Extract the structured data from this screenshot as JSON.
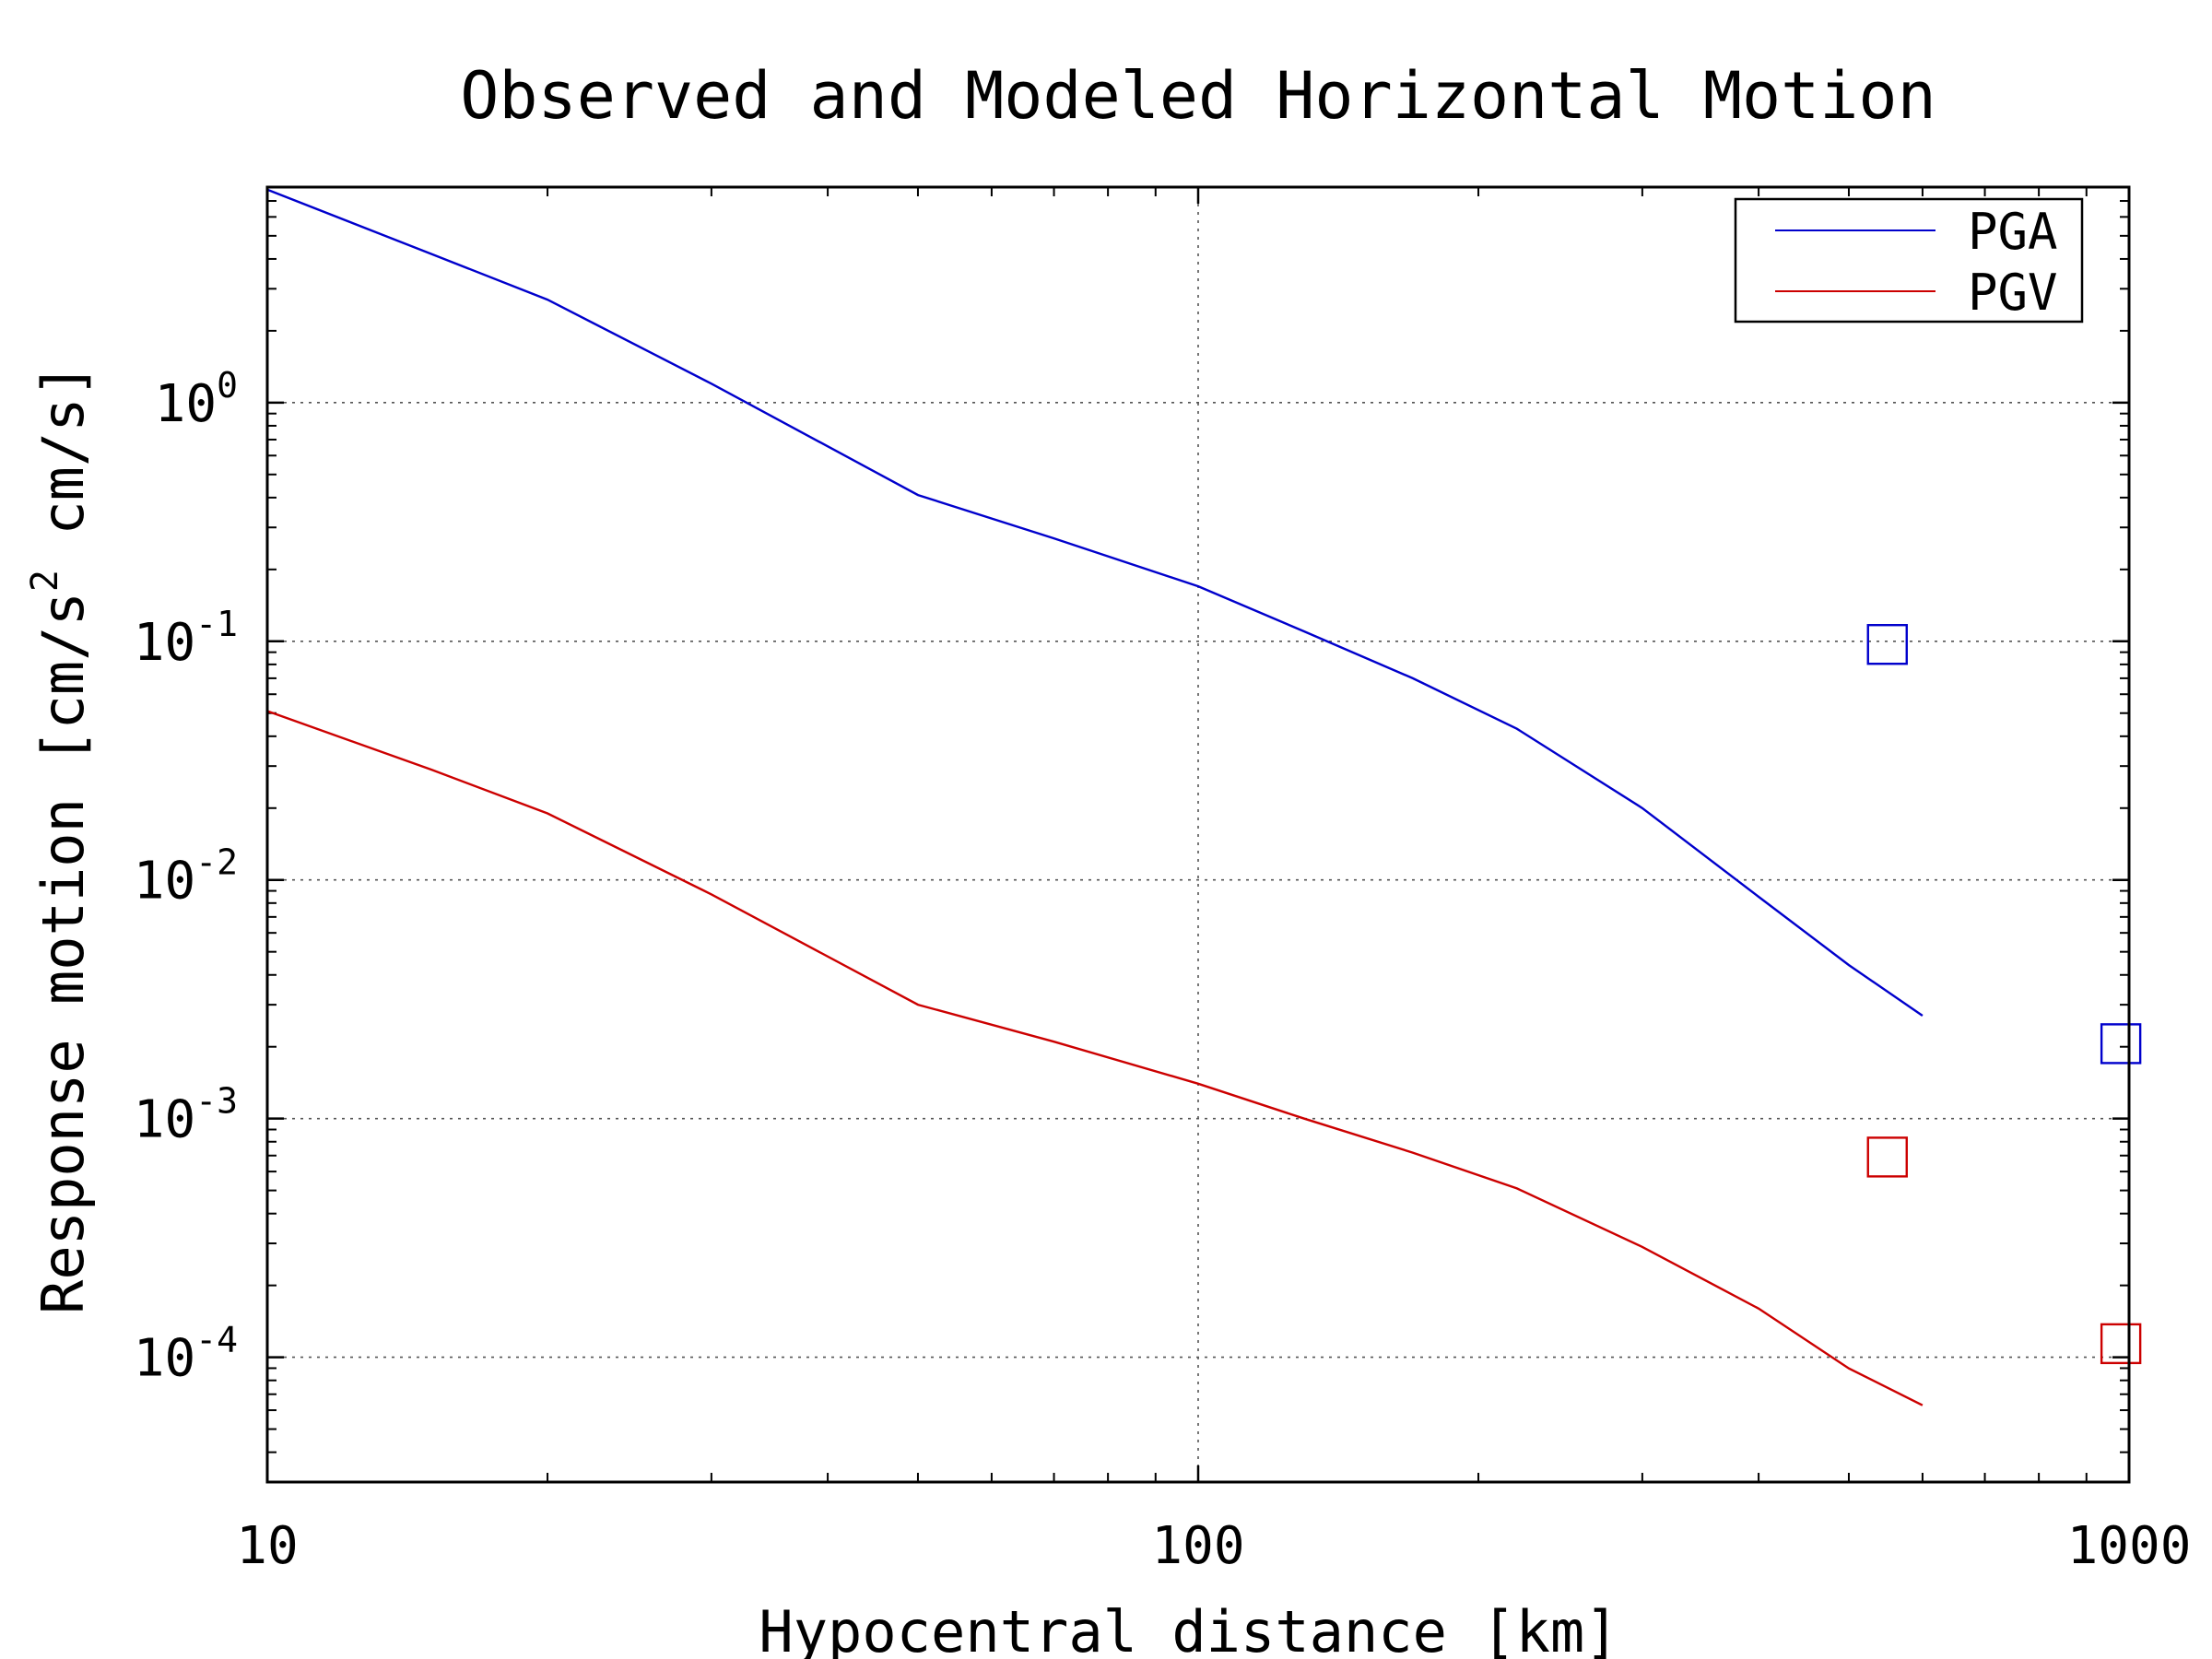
{
  "chart_data": {
    "type": "line",
    "title": "Observed and Modeled Horizontal Motion",
    "xlabel": "Hypocentral distance [km]",
    "ylabel_parts": {
      "prefix": "Response motion [cm/s",
      "sup": "2",
      "suffix": "  cm/s]"
    },
    "xscale": "log",
    "yscale": "log",
    "xlim": [
      10,
      1000
    ],
    "ylim": [
      3e-05,
      8
    ],
    "x_ticks": [
      {
        "value": 10,
        "label": "10"
      },
      {
        "value": 100,
        "label": "100"
      },
      {
        "value": 1000,
        "label": "1000"
      }
    ],
    "y_ticks": [
      {
        "value": 1,
        "base": "10",
        "exp": "0"
      },
      {
        "value": 0.1,
        "base": "10",
        "exp": "-1"
      },
      {
        "value": 0.01,
        "base": "10",
        "exp": "-2"
      },
      {
        "value": 0.001,
        "base": "10",
        "exp": "-3"
      },
      {
        "value": 0.0001,
        "base": "10",
        "exp": "-4"
      }
    ],
    "grid": true,
    "legend_position": "top-right",
    "series": [
      {
        "name": "PGA",
        "color": "#0000cc",
        "points": [
          [
            10,
            7.8
          ],
          [
            15,
            4.2
          ],
          [
            20,
            2.7
          ],
          [
            30,
            1.2
          ],
          [
            50,
            0.41
          ],
          [
            70,
            0.27
          ],
          [
            100,
            0.17
          ],
          [
            130,
            0.11
          ],
          [
            170,
            0.07
          ],
          [
            220,
            0.043
          ],
          [
            300,
            0.02
          ],
          [
            400,
            0.0085
          ],
          [
            500,
            0.0044
          ],
          [
            600,
            0.0027
          ]
        ]
      },
      {
        "name": "PGV",
        "color": "#cc0000",
        "points": [
          [
            10,
            0.051
          ],
          [
            15,
            0.029
          ],
          [
            20,
            0.019
          ],
          [
            30,
            0.0087
          ],
          [
            50,
            0.003
          ],
          [
            70,
            0.0021
          ],
          [
            100,
            0.0014
          ],
          [
            130,
            0.001
          ],
          [
            170,
            0.00072
          ],
          [
            220,
            0.00051
          ],
          [
            300,
            0.00029
          ],
          [
            400,
            0.00016
          ],
          [
            500,
            8.98e-05
          ],
          [
            600,
            6.29e-05
          ]
        ]
      }
    ],
    "observed": [
      {
        "series": "PGA",
        "x": 550,
        "y": 0.097,
        "color": "#0000cc"
      },
      {
        "series": "PGA",
        "x": 980,
        "y": 0.00206,
        "color": "#0000cc"
      },
      {
        "series": "PGV",
        "x": 550,
        "y": 0.00069,
        "color": "#cc0000"
      },
      {
        "series": "PGV",
        "x": 980,
        "y": 0.000114,
        "color": "#cc0000"
      }
    ]
  }
}
